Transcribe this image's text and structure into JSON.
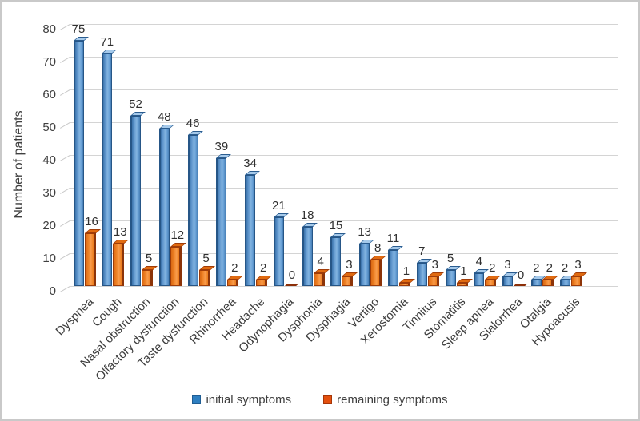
{
  "figure": {
    "border_color": "#c9c9c9",
    "background": "#ffffff",
    "gridline_color": "#d4d4d4"
  },
  "chart_data": {
    "type": "bar",
    "style": "3d-clustered-column",
    "title": "",
    "xlabel": "",
    "ylabel": "Number of patients",
    "ylim": [
      0,
      80
    ],
    "yticks": [
      0,
      10,
      20,
      30,
      40,
      50,
      60,
      70,
      80
    ],
    "grid": true,
    "data_labels": true,
    "legend_position": "bottom",
    "categories": [
      "Dyspnea",
      "Cough",
      "Nasal obstruction",
      "Olfactory dysfunction",
      "Taste dysfunction",
      "Rhinorrhea",
      "Headache",
      "Odynophagia",
      "Dysphonia",
      "Dysphagia",
      "Vertigo",
      "Xerostomia",
      "Tinnitus",
      "Stomatitis",
      "Sleep apnea",
      "Sialorrhea",
      "Otalgia",
      "Hypoacusis"
    ],
    "series": [
      {
        "name": "initial symptoms",
        "color": "#5e95cc",
        "legend_color": "#2e7fc1",
        "values": [
          75,
          71,
          52,
          48,
          46,
          39,
          34,
          21,
          18,
          15,
          13,
          11,
          7,
          5,
          4,
          3,
          2,
          2
        ]
      },
      {
        "name": "remaining symptoms",
        "color": "#ef8226",
        "legend_color": "#e4500e",
        "values": [
          16,
          13,
          5,
          12,
          5,
          2,
          2,
          0,
          4,
          3,
          8,
          1,
          3,
          1,
          2,
          0,
          2,
          3
        ]
      }
    ]
  }
}
